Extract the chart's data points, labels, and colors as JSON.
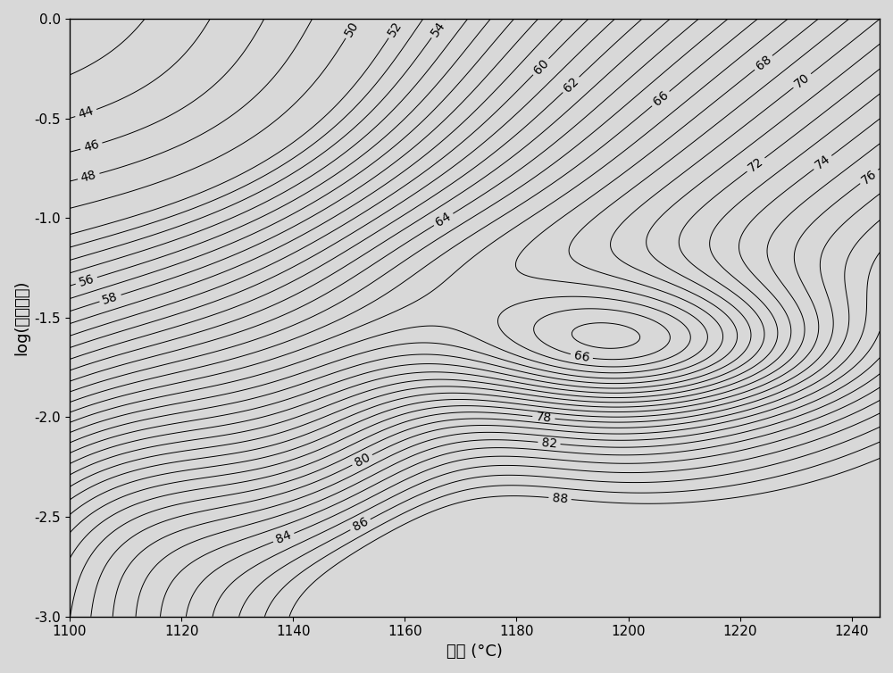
{
  "title": "",
  "xlabel": "温度 (°C)",
  "ylabel": "log(应变速率)",
  "xlim": [
    1100,
    1245
  ],
  "ylim": [
    -3.0,
    0.0
  ],
  "xticks": [
    1100,
    1120,
    1140,
    1160,
    1180,
    1200,
    1220,
    1240
  ],
  "yticks": [
    0.0,
    -0.5,
    -1.0,
    -1.5,
    -2.0,
    -2.5,
    -3.0
  ],
  "contour_levels": [
    42,
    44,
    46,
    48,
    50,
    52,
    53,
    54,
    55,
    56,
    57,
    58,
    59,
    60,
    61,
    62,
    63,
    64,
    65,
    66,
    67,
    68,
    69,
    70,
    71,
    72,
    73,
    74,
    75,
    76,
    77,
    78,
    79,
    80,
    81,
    82,
    83,
    84,
    85,
    86,
    87,
    88
  ],
  "label_levels": [
    44,
    46,
    48,
    50,
    52,
    54,
    56,
    58,
    60,
    62,
    64,
    66,
    68,
    70,
    72,
    74,
    76,
    78,
    80,
    82,
    84,
    86,
    88
  ],
  "background_color": "#d8d8d8",
  "line_color": "#000000",
  "fontsize_labels": 10,
  "fontsize_axis": 13,
  "fontsize_ticks": 11
}
